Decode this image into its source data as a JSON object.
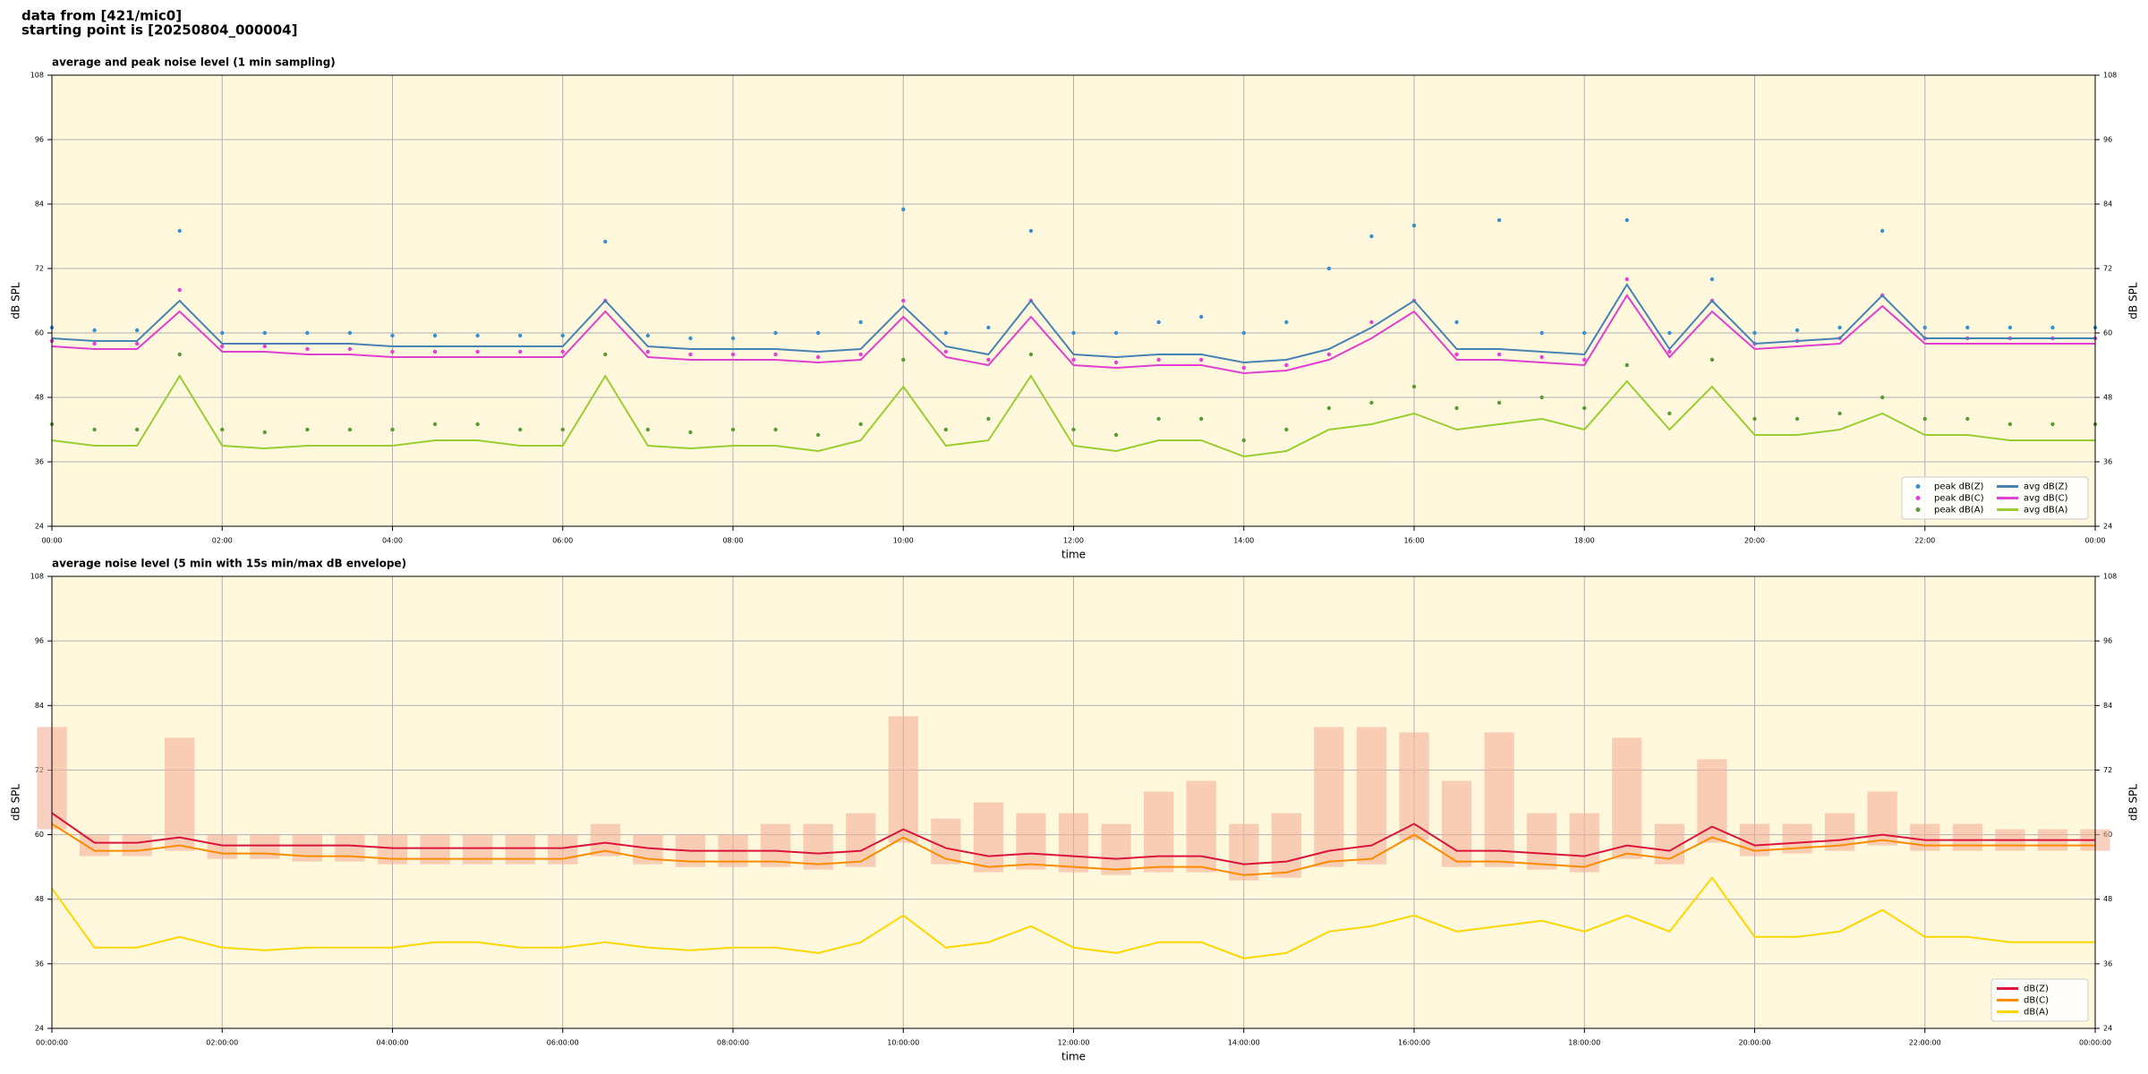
{
  "header": {
    "lines": [
      "data from [421/mic0]",
      "starting point is [20250804_000004]"
    ]
  },
  "chart_data": [
    {
      "type": "line",
      "title": "average and peak noise level (1 min sampling)",
      "xlabel": "time",
      "ylabel": "dB SPL",
      "x": [
        0,
        0.5,
        1,
        1.5,
        2,
        2.5,
        3,
        3.5,
        4,
        4.5,
        5,
        5.5,
        6,
        6.5,
        7,
        7.5,
        8,
        8.5,
        9,
        9.5,
        10,
        10.5,
        11,
        11.5,
        12,
        12.5,
        13,
        13.5,
        14,
        14.5,
        15,
        15.5,
        16,
        16.5,
        17,
        17.5,
        18,
        18.5,
        19,
        19.5,
        20,
        20.5,
        21,
        21.5,
        22,
        22.5,
        23,
        23.5,
        24
      ],
      "xlim": [
        0,
        24
      ],
      "xticks": [
        {
          "value": 0,
          "label": "00:00"
        },
        {
          "value": 2,
          "label": "02:00"
        },
        {
          "value": 4,
          "label": "04:00"
        },
        {
          "value": 6,
          "label": "06:00"
        },
        {
          "value": 8,
          "label": "08:00"
        },
        {
          "value": 10,
          "label": "10:00"
        },
        {
          "value": 12,
          "label": "12:00"
        },
        {
          "value": 14,
          "label": "14:00"
        },
        {
          "value": 16,
          "label": "16:00"
        },
        {
          "value": 18,
          "label": "18:00"
        },
        {
          "value": 20,
          "label": "20:00"
        },
        {
          "value": 22,
          "label": "22:00"
        },
        {
          "value": 24,
          "label": "00:00"
        }
      ],
      "ylim": [
        24,
        108
      ],
      "yticks": [
        24,
        36,
        48,
        60,
        72,
        84,
        96,
        108
      ],
      "grid": true,
      "background": "#fff8dc",
      "legend": "lower right",
      "legend_ncol": 2,
      "series": [
        {
          "name": "peak dB(Z)",
          "style": "scatter",
          "color": "#3a8fd0",
          "values": [
            61,
            60.5,
            60.5,
            79,
            60,
            60,
            60,
            60,
            59.5,
            59.5,
            59.5,
            59.5,
            59.5,
            77,
            59.5,
            59,
            59,
            60,
            60,
            62,
            83,
            60,
            61,
            79,
            60,
            60,
            62,
            63,
            60,
            62,
            72,
            78,
            80,
            62,
            81,
            60,
            60,
            81,
            60,
            70,
            60,
            60.5,
            61,
            79,
            61,
            61,
            61,
            61,
            61
          ]
        },
        {
          "name": "peak dB(C)",
          "style": "scatter",
          "color": "#e83ed8",
          "values": [
            58.5,
            58,
            58,
            68,
            57.5,
            57.5,
            57,
            57,
            56.5,
            56.5,
            56.5,
            56.5,
            56.5,
            66,
            56.5,
            56,
            56,
            56,
            55.5,
            56,
            66,
            56.5,
            55,
            66,
            55,
            54.5,
            55,
            55,
            53.5,
            54,
            56,
            62,
            66,
            56,
            56,
            55.5,
            55,
            70,
            56.5,
            66,
            58,
            58.5,
            59,
            67,
            59,
            59,
            59,
            59,
            59
          ]
        },
        {
          "name": "peak dB(A)",
          "style": "scatter",
          "color": "#5a9a3a",
          "values": [
            43,
            42,
            42,
            56,
            42,
            41.5,
            42,
            42,
            42,
            43,
            43,
            42,
            42,
            56,
            42,
            41.5,
            42,
            42,
            41,
            43,
            55,
            42,
            44,
            56,
            42,
            41,
            44,
            44,
            40,
            42,
            46,
            47,
            50,
            46,
            47,
            48,
            46,
            54,
            45,
            55,
            44,
            44,
            45,
            48,
            44,
            44,
            43,
            43,
            43
          ]
        },
        {
          "name": "avg dB(Z)",
          "style": "line",
          "color": "#4682b4",
          "values": [
            59,
            58.5,
            58.5,
            66,
            58,
            58,
            58,
            58,
            57.5,
            57.5,
            57.5,
            57.5,
            57.5,
            66,
            57.5,
            57,
            57,
            57,
            56.5,
            57,
            65,
            57.5,
            56,
            66,
            56,
            55.5,
            56,
            56,
            54.5,
            55,
            57,
            61,
            66,
            57,
            57,
            56.5,
            56,
            69,
            57,
            66,
            58,
            58.5,
            59,
            67,
            59,
            59,
            59,
            59,
            59
          ]
        },
        {
          "name": "avg dB(C)",
          "style": "line",
          "color": "#e040d0",
          "values": [
            57.5,
            57,
            57,
            64,
            56.5,
            56.5,
            56,
            56,
            55.5,
            55.5,
            55.5,
            55.5,
            55.5,
            64,
            55.5,
            55,
            55,
            55,
            54.5,
            55,
            63,
            55.5,
            54,
            63,
            54,
            53.5,
            54,
            54,
            52.5,
            53,
            55,
            59,
            64,
            55,
            55,
            54.5,
            54,
            67,
            55.5,
            64,
            57,
            57.5,
            58,
            65,
            58,
            58,
            58,
            58,
            58
          ]
        },
        {
          "name": "avg dB(A)",
          "style": "line",
          "color": "#9acd32",
          "values": [
            40,
            39,
            39,
            52,
            39,
            38.5,
            39,
            39,
            39,
            40,
            40,
            39,
            39,
            52,
            39,
            38.5,
            39,
            39,
            38,
            40,
            50,
            39,
            40,
            52,
            39,
            38,
            40,
            40,
            37,
            38,
            42,
            43,
            45,
            42,
            43,
            44,
            42,
            51,
            42,
            50,
            41,
            41,
            42,
            45,
            41,
            41,
            40,
            40,
            40
          ]
        }
      ]
    },
    {
      "type": "line",
      "title": "average noise level (5 min with 15s min/max dB envelope)",
      "xlabel": "time",
      "ylabel": "dB SPL",
      "x": [
        0,
        0.5,
        1,
        1.5,
        2,
        2.5,
        3,
        3.5,
        4,
        4.5,
        5,
        5.5,
        6,
        6.5,
        7,
        7.5,
        8,
        8.5,
        9,
        9.5,
        10,
        10.5,
        11,
        11.5,
        12,
        12.5,
        13,
        13.5,
        14,
        14.5,
        15,
        15.5,
        16,
        16.5,
        17,
        17.5,
        18,
        18.5,
        19,
        19.5,
        20,
        20.5,
        21,
        21.5,
        22,
        22.5,
        23,
        23.5,
        24
      ],
      "xlim": [
        0,
        24
      ],
      "xticks": [
        {
          "value": 0,
          "label": "00:00:00"
        },
        {
          "value": 2,
          "label": "02:00:00"
        },
        {
          "value": 4,
          "label": "04:00:00"
        },
        {
          "value": 6,
          "label": "06:00:00"
        },
        {
          "value": 8,
          "label": "08:00:00"
        },
        {
          "value": 10,
          "label": "10:00:00"
        },
        {
          "value": 12,
          "label": "12:00:00"
        },
        {
          "value": 14,
          "label": "14:00:00"
        },
        {
          "value": 16,
          "label": "16:00:00"
        },
        {
          "value": 18,
          "label": "18:00:00"
        },
        {
          "value": 20,
          "label": "20:00:00"
        },
        {
          "value": 22,
          "label": "22:00:00"
        },
        {
          "value": 24,
          "label": "00:00:00"
        }
      ],
      "ylim": [
        24,
        108
      ],
      "yticks": [
        24,
        36,
        48,
        60,
        72,
        84,
        96,
        108
      ],
      "grid": true,
      "background": "#fff8dc",
      "legend": "lower right",
      "legend_ncol": 1,
      "envelope": {
        "color": "#f4b09a",
        "high": [
          80,
          60,
          60,
          78,
          60,
          60,
          60,
          60,
          60,
          60,
          60,
          60,
          60,
          62,
          60,
          60,
          60,
          62,
          62,
          64,
          82,
          63,
          66,
          64,
          64,
          62,
          68,
          70,
          62,
          64,
          80,
          80,
          79,
          70,
          79,
          64,
          64,
          78,
          62,
          74,
          62,
          62,
          64,
          68,
          62,
          62,
          61,
          61,
          61
        ],
        "low": [
          61,
          56,
          56,
          57,
          55.5,
          55.5,
          55,
          55,
          54.5,
          54.5,
          54.5,
          54.5,
          54.5,
          56,
          54.5,
          54,
          54,
          54,
          53.5,
          54,
          58.5,
          54.5,
          53,
          53.5,
          53,
          52.5,
          53,
          53,
          51.5,
          52,
          54,
          54.5,
          59,
          54,
          54,
          53.5,
          53,
          55.5,
          54.5,
          58.5,
          56,
          56.5,
          57,
          58,
          57,
          57,
          57,
          57,
          57
        ]
      },
      "series": [
        {
          "name": "dB(Z)",
          "style": "line",
          "color": "#dc143c",
          "values": [
            64,
            58.5,
            58.5,
            59.5,
            58,
            58,
            58,
            58,
            57.5,
            57.5,
            57.5,
            57.5,
            57.5,
            58.5,
            57.5,
            57,
            57,
            57,
            56.5,
            57,
            61,
            57.5,
            56,
            56.5,
            56,
            55.5,
            56,
            56,
            54.5,
            55,
            57,
            58,
            62,
            57,
            57,
            56.5,
            56,
            58,
            57,
            61.5,
            58,
            58.5,
            59,
            60,
            59,
            59,
            59,
            59,
            59
          ]
        },
        {
          "name": "dB(C)",
          "style": "line",
          "color": "#ff8c00",
          "values": [
            62,
            57,
            57,
            58,
            56.5,
            56.5,
            56,
            56,
            55.5,
            55.5,
            55.5,
            55.5,
            55.5,
            57,
            55.5,
            55,
            55,
            55,
            54.5,
            55,
            59.5,
            55.5,
            54,
            54.5,
            54,
            53.5,
            54,
            54,
            52.5,
            53,
            55,
            55.5,
            60,
            55,
            55,
            54.5,
            54,
            56.5,
            55.5,
            59.5,
            57,
            57.5,
            58,
            59,
            58,
            58,
            58,
            58,
            58
          ]
        },
        {
          "name": "dB(A)",
          "style": "line",
          "color": "#ffd700",
          "values": [
            50,
            39,
            39,
            41,
            39,
            38.5,
            39,
            39,
            39,
            40,
            40,
            39,
            39,
            40,
            39,
            38.5,
            39,
            39,
            38,
            40,
            45,
            39,
            40,
            43,
            39,
            38,
            40,
            40,
            37,
            38,
            42,
            43,
            45,
            42,
            43,
            44,
            42,
            45,
            42,
            52,
            41,
            41,
            42,
            46,
            41,
            41,
            40,
            40,
            40
          ]
        }
      ]
    }
  ]
}
